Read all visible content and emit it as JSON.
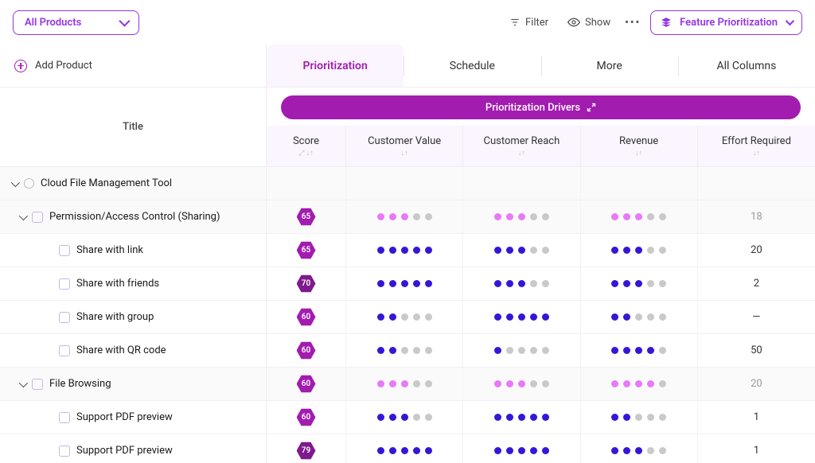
{
  "colors": {
    "accent": "#9333ea",
    "accent_dark": "#7e1a8c",
    "drivers_bar": "#a21caf",
    "dot_filled_blue": "#3417d6",
    "dot_filled_pink": "#e879f9",
    "dot_empty": "#c9c9c9",
    "header_bg": "#faf5fe"
  },
  "toolbar": {
    "product_picker": "All Products",
    "filter": "Filter",
    "show": "Show",
    "view_select": "Feature Prioritization"
  },
  "left": {
    "add_product": "Add Product",
    "title_header": "Title"
  },
  "tabs": [
    {
      "label": "Prioritization",
      "active": true
    },
    {
      "label": "Schedule",
      "active": false
    },
    {
      "label": "More",
      "active": false
    },
    {
      "label": "All Columns",
      "active": false
    }
  ],
  "drivers_bar_label": "Prioritization Drivers",
  "columns": [
    {
      "label": "Score"
    },
    {
      "label": "Customer Value"
    },
    {
      "label": "Customer Reach"
    },
    {
      "label": "Revenue"
    },
    {
      "label": "Effort Required"
    }
  ],
  "dot_max": 5,
  "rows": [
    {
      "type": "product",
      "title": "Cloud File Management Tool",
      "expanded": true
    },
    {
      "type": "group",
      "title": "Permission/Access Control (Sharing)",
      "expanded": true,
      "score": 65,
      "dot_color": "pink",
      "customer_value": 3,
      "customer_reach": 3,
      "revenue": 3,
      "effort": "18"
    },
    {
      "type": "item",
      "title": "Share with link",
      "score": 65,
      "dot_color": "blue",
      "customer_value": 5,
      "customer_reach": 3,
      "revenue": 3,
      "effort": "20"
    },
    {
      "type": "item",
      "title": "Share with friends",
      "score": 70,
      "score_dark": true,
      "dot_color": "blue",
      "customer_value": 5,
      "customer_reach": 3,
      "revenue": 3,
      "effort": "2"
    },
    {
      "type": "item",
      "title": "Share with group",
      "score": 60,
      "dot_color": "blue",
      "customer_value": 2,
      "customer_reach": 5,
      "revenue": 2,
      "effort": "—"
    },
    {
      "type": "item",
      "title": "Share with QR code",
      "score": 60,
      "dot_color": "blue",
      "customer_value": 2,
      "customer_reach": 1,
      "revenue": 4,
      "effort": "50"
    },
    {
      "type": "group",
      "title": "File Browsing",
      "expanded": true,
      "score": 60,
      "dot_color": "pink",
      "customer_value": 3,
      "customer_reach": 3,
      "revenue": 4,
      "effort": "20"
    },
    {
      "type": "item",
      "title": "Support PDF preview",
      "score": 60,
      "dot_color": "blue",
      "customer_value": 3,
      "customer_reach": 5,
      "revenue": 2,
      "effort": "1"
    },
    {
      "type": "item",
      "title": "Support PDF preview",
      "score": 79,
      "score_dark": true,
      "dot_color": "blue",
      "customer_value": 5,
      "customer_reach": 5,
      "revenue": 3,
      "effort": "1"
    }
  ]
}
